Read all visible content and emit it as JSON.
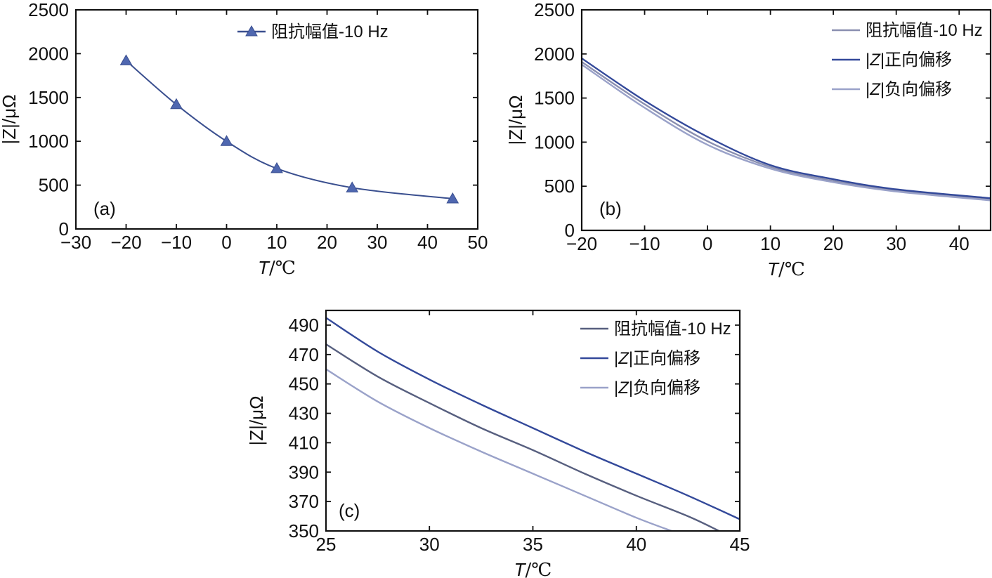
{
  "colors": {
    "series_main": "#3a4f8f",
    "series_positive": "#33499a",
    "series_negative": "#9aa2c9",
    "series_base_b": "#8a8fb0",
    "series_base_c": "#575f7f",
    "marker_fill": "#4f67b0",
    "frame": "#111111"
  },
  "units": {
    "t_axis_var": "T",
    "t_axis_unit": "/℃",
    "z_axis": "|Z|/μΩ"
  },
  "chart_data": [
    {
      "panel": "(a)",
      "type": "line",
      "xlabel": "T/℃",
      "ylabel": "|Z|/μΩ",
      "xlim": [
        -30,
        50
      ],
      "ylim": [
        0,
        2500
      ],
      "xticks": [
        -30,
        -20,
        -10,
        0,
        10,
        20,
        30,
        40,
        50
      ],
      "yticks": [
        0,
        500,
        1000,
        1500,
        2000,
        2500
      ],
      "xtick_labels": [
        "−30",
        "−20",
        "−10",
        "0",
        "10",
        "20",
        "30",
        "40",
        "50"
      ],
      "ytick_labels": [
        "0",
        "500",
        "1000",
        "1500",
        "2000",
        "2500"
      ],
      "legend_position": "top-center",
      "series": [
        {
          "name": "阻抗幅值-10 Hz",
          "marker": "triangle",
          "x": [
            -20,
            -10,
            0,
            10,
            25,
            45
          ],
          "y": [
            1920,
            1420,
            1000,
            690,
            470,
            345
          ]
        }
      ]
    },
    {
      "panel": "(b)",
      "type": "line",
      "xlabel": "T/℃",
      "ylabel": "|Z|/μΩ",
      "xlim": [
        -20,
        45
      ],
      "ylim": [
        0,
        2500
      ],
      "xticks": [
        -20,
        -10,
        0,
        10,
        20,
        30,
        40
      ],
      "yticks": [
        0,
        500,
        1000,
        1500,
        2000,
        2500
      ],
      "xtick_labels": [
        "−20",
        "−10",
        "0",
        "10",
        "20",
        "30",
        "40"
      ],
      "ytick_labels": [
        "0",
        "500",
        "1000",
        "1500",
        "2000",
        "2500"
      ],
      "legend_position": "top-right",
      "series": [
        {
          "name": "阻抗幅值-10 Hz",
          "label_parts": [
            "阻抗幅值-10 Hz"
          ],
          "x": [
            -20,
            -10,
            0,
            10,
            20,
            30,
            45
          ],
          "y": [
            1910,
            1430,
            1010,
            720,
            560,
            450,
            350
          ]
        },
        {
          "name": "|Z|正向偏移",
          "label_parts": [
            "|",
            "Z",
            "|正向偏移"
          ],
          "x": [
            -20,
            -10,
            0,
            10,
            20,
            30,
            45
          ],
          "y": [
            1950,
            1470,
            1060,
            740,
            580,
            465,
            365
          ]
        },
        {
          "name": "|Z|负向偏移",
          "label_parts": [
            "|",
            "Z",
            "|负向偏移"
          ],
          "x": [
            -20,
            -10,
            0,
            10,
            20,
            30,
            45
          ],
          "y": [
            1880,
            1390,
            970,
            700,
            545,
            440,
            340
          ]
        }
      ]
    },
    {
      "panel": "(c)",
      "type": "line",
      "xlabel": "T/℃",
      "ylabel": "|Z|/μΩ",
      "xlim": [
        25,
        45
      ],
      "ylim": [
        350,
        500
      ],
      "xticks": [
        25,
        30,
        35,
        40,
        45
      ],
      "yticks": [
        350,
        370,
        390,
        410,
        430,
        450,
        470,
        490
      ],
      "xtick_labels": [
        "25",
        "30",
        "35",
        "40",
        "45"
      ],
      "ytick_labels": [
        "350",
        "370",
        "390",
        "410",
        "430",
        "450",
        "470",
        "490"
      ],
      "legend_position": "top-right",
      "series": [
        {
          "name": "阻抗幅值-10 Hz",
          "label_parts": [
            "阻抗幅值-10 Hz"
          ],
          "x": [
            25,
            27.5,
            30,
            32.5,
            35,
            37.5,
            40,
            42.5,
            44
          ],
          "y": [
            477,
            455,
            437,
            420,
            405,
            389,
            374,
            360,
            350
          ]
        },
        {
          "name": "|Z|正向偏移",
          "label_parts": [
            "|",
            "Z",
            "|正向偏移"
          ],
          "x": [
            25,
            27.5,
            30,
            32.5,
            35,
            37.5,
            40,
            42.5,
            45
          ],
          "y": [
            495,
            472,
            453,
            436,
            420,
            404,
            389,
            374,
            358
          ]
        },
        {
          "name": "|Z|负向偏移",
          "label_parts": [
            "|",
            "Z",
            "|负向偏移"
          ],
          "x": [
            25,
            27.5,
            30,
            32.5,
            35,
            37.5,
            40,
            41.7
          ],
          "y": [
            460,
            438,
            420,
            404,
            389,
            374,
            359,
            350
          ]
        }
      ]
    }
  ]
}
